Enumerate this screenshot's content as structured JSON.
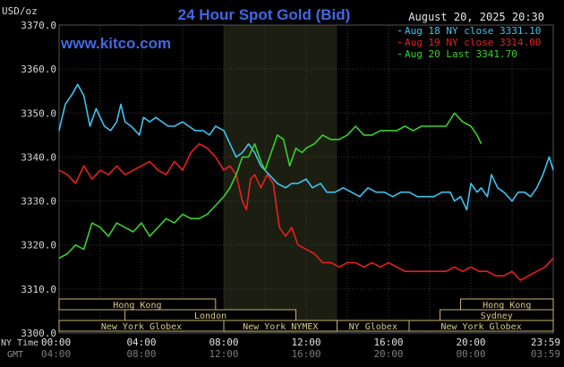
{
  "chart_data": {
    "type": "line",
    "title": "24 Hour Spot Gold (Bid)",
    "date": "August 20, 2025 20:30",
    "unit_label": "USD/oz",
    "source": "www.kitco.com",
    "ylim": [
      3300.0,
      3370.0
    ],
    "y_ticks": [
      "3370.0",
      "3360.0",
      "3350.0",
      "3340.0",
      "3330.0",
      "3320.0",
      "3310.0",
      "3300.0"
    ],
    "x_row1_label": "NY Time",
    "x_row2_label": "GMT",
    "x_ticks_ny": [
      "00:00",
      "04:00",
      "08:00",
      "12:00",
      "16:00",
      "20:00",
      "23:59"
    ],
    "x_ticks_gmt": [
      "04:00",
      "08:00",
      "12:00",
      "16:00",
      "20:00",
      "00:00",
      "03:59"
    ],
    "grid": true,
    "legend_position": "top-right",
    "colors": {
      "aug18": "#3ec4f0",
      "aug19": "#e8201e",
      "aug20": "#39d12b",
      "title": "#4169e1",
      "highlight": "#1c1e12"
    },
    "series": [
      {
        "name": "Aug 18 NY close 3331.10",
        "x": [
          0,
          0.3,
          0.6,
          0.9,
          1.2,
          1.5,
          1.8,
          2.0,
          2.2,
          2.5,
          2.8,
          3.0,
          3.2,
          3.5,
          3.7,
          3.9,
          4.1,
          4.4,
          4.7,
          5.0,
          5.3,
          5.6,
          6.0,
          6.3,
          6.6,
          7.0,
          7.3,
          7.6,
          8.0,
          8.3,
          8.6,
          8.9,
          9.2,
          9.5,
          9.8,
          10.2,
          10.6,
          11.0,
          11.3,
          11.6,
          12.0,
          12.3,
          12.7,
          13.0,
          13.4,
          13.8,
          14.2,
          14.6,
          15.0,
          15.4,
          15.8,
          16.2,
          16.6,
          17.0,
          17.4,
          17.8,
          18.2,
          18.6,
          19.0,
          19.2,
          19.5,
          19.8,
          20.0,
          20.3,
          20.5,
          20.8,
          21.0,
          21.3,
          21.6,
          22.0,
          22.3,
          22.6,
          22.9,
          23.2,
          23.5,
          23.8,
          24.0
        ],
        "values": [
          3346,
          3352,
          3354,
          3356.5,
          3354,
          3347,
          3351,
          3349,
          3347,
          3346,
          3348,
          3352,
          3348,
          3347,
          3346,
          3345,
          3349,
          3348,
          3349,
          3348,
          3347,
          3347,
          3348,
          3347,
          3346,
          3346,
          3345,
          3347,
          3346,
          3343,
          3340,
          3341,
          3343,
          3341,
          3338,
          3336,
          3334,
          3333,
          3334,
          3334,
          3335,
          3333,
          3334,
          3332,
          3332,
          3333,
          3332,
          3331,
          3333,
          3332,
          3332,
          3331,
          3332,
          3332,
          3331,
          3331,
          3331,
          3332,
          3332,
          3330,
          3331,
          3328,
          3334,
          3332,
          3333,
          3331,
          3336,
          3333,
          3332,
          3330,
          3332,
          3332,
          3331,
          3333,
          3336,
          3340,
          3337
        ]
      },
      {
        "name": "Aug 19 NY close 3314.00",
        "x": [
          0,
          0.4,
          0.8,
          1.2,
          1.6,
          2.0,
          2.4,
          2.8,
          3.2,
          3.6,
          4.0,
          4.4,
          4.8,
          5.2,
          5.6,
          6.0,
          6.4,
          6.8,
          7.2,
          7.6,
          8.0,
          8.3,
          8.6,
          8.9,
          9.1,
          9.3,
          9.5,
          9.8,
          10.1,
          10.4,
          10.7,
          11.0,
          11.3,
          11.6,
          12.0,
          12.4,
          12.8,
          13.2,
          13.6,
          14.0,
          14.4,
          14.8,
          15.2,
          15.6,
          16.0,
          16.4,
          16.8,
          17.2,
          17.6,
          18.0,
          18.4,
          18.8,
          19.2,
          19.6,
          20.0,
          20.4,
          20.8,
          21.2,
          21.6,
          22.0,
          22.4,
          22.8,
          23.2,
          23.6,
          24.0
        ],
        "values": [
          3337,
          3336,
          3334,
          3338,
          3335,
          3337,
          3336,
          3338,
          3336,
          3337,
          3338,
          3339,
          3337,
          3336,
          3339,
          3337,
          3341,
          3343,
          3342,
          3340,
          3337,
          3338,
          3336,
          3330,
          3328,
          3335,
          3336,
          3333,
          3336,
          3334,
          3324,
          3322,
          3324,
          3320,
          3319,
          3318,
          3316,
          3316,
          3315,
          3316,
          3316,
          3315,
          3316,
          3315,
          3316,
          3315,
          3314,
          3314,
          3314,
          3314,
          3314,
          3314,
          3315,
          3314,
          3315,
          3314,
          3314,
          3313,
          3313,
          3314,
          3312,
          3313,
          3314,
          3315,
          3317
        ]
      },
      {
        "name": "Aug 20 Last 3341.70",
        "x": [
          0,
          0.4,
          0.8,
          1.2,
          1.6,
          2.0,
          2.4,
          2.8,
          3.2,
          3.6,
          4.0,
          4.4,
          4.8,
          5.2,
          5.6,
          6.0,
          6.4,
          6.8,
          7.2,
          7.6,
          8.0,
          8.3,
          8.6,
          8.9,
          9.2,
          9.5,
          9.8,
          10.0,
          10.3,
          10.6,
          10.9,
          11.2,
          11.5,
          11.8,
          12.0,
          12.4,
          12.8,
          13.2,
          13.6,
          14.0,
          14.4,
          14.8,
          15.2,
          15.6,
          16.0,
          16.4,
          16.8,
          17.2,
          17.6,
          18.0,
          18.4,
          18.8,
          19.2,
          19.6,
          20.0,
          20.3,
          20.5
        ],
        "values": [
          3317,
          3318,
          3320,
          3319,
          3325,
          3324,
          3322,
          3325,
          3324,
          3323,
          3325,
          3322,
          3324,
          3326,
          3325,
          3327,
          3326,
          3326,
          3327,
          3329,
          3331,
          3333,
          3336,
          3340,
          3340,
          3343,
          3339,
          3337,
          3341,
          3345,
          3344,
          3338,
          3342,
          3341,
          3342,
          3343,
          3345,
          3344,
          3344,
          3345,
          3347,
          3345,
          3345,
          3346,
          3346,
          3346,
          3347,
          3346,
          3347,
          3347,
          3347,
          3347,
          3350,
          3348,
          3347,
          3345,
          3343
        ]
      }
    ],
    "sessions": [
      {
        "label": "Hong Kong",
        "start": 0,
        "end": 7.6,
        "row": 0
      },
      {
        "label": "London",
        "start": 3.2,
        "end": 11.5,
        "row": 1
      },
      {
        "label": "New York Globex",
        "start": 0,
        "end": 8.0,
        "row": 2
      },
      {
        "label": "New York NYMEX",
        "start": 8.0,
        "end": 13.5,
        "row": 2
      },
      {
        "label": "NY Globex",
        "start": 13.5,
        "end": 17.0,
        "row": 2
      },
      {
        "label": "Hong Kong",
        "start": 19.5,
        "end": 24,
        "row": 0
      },
      {
        "label": "Sydney",
        "start": 18.5,
        "end": 24,
        "row": 1
      },
      {
        "label": "New York Globex",
        "start": 17.0,
        "end": 24,
        "row": 2
      }
    ],
    "highlight_range": [
      8.0,
      13.5
    ]
  }
}
